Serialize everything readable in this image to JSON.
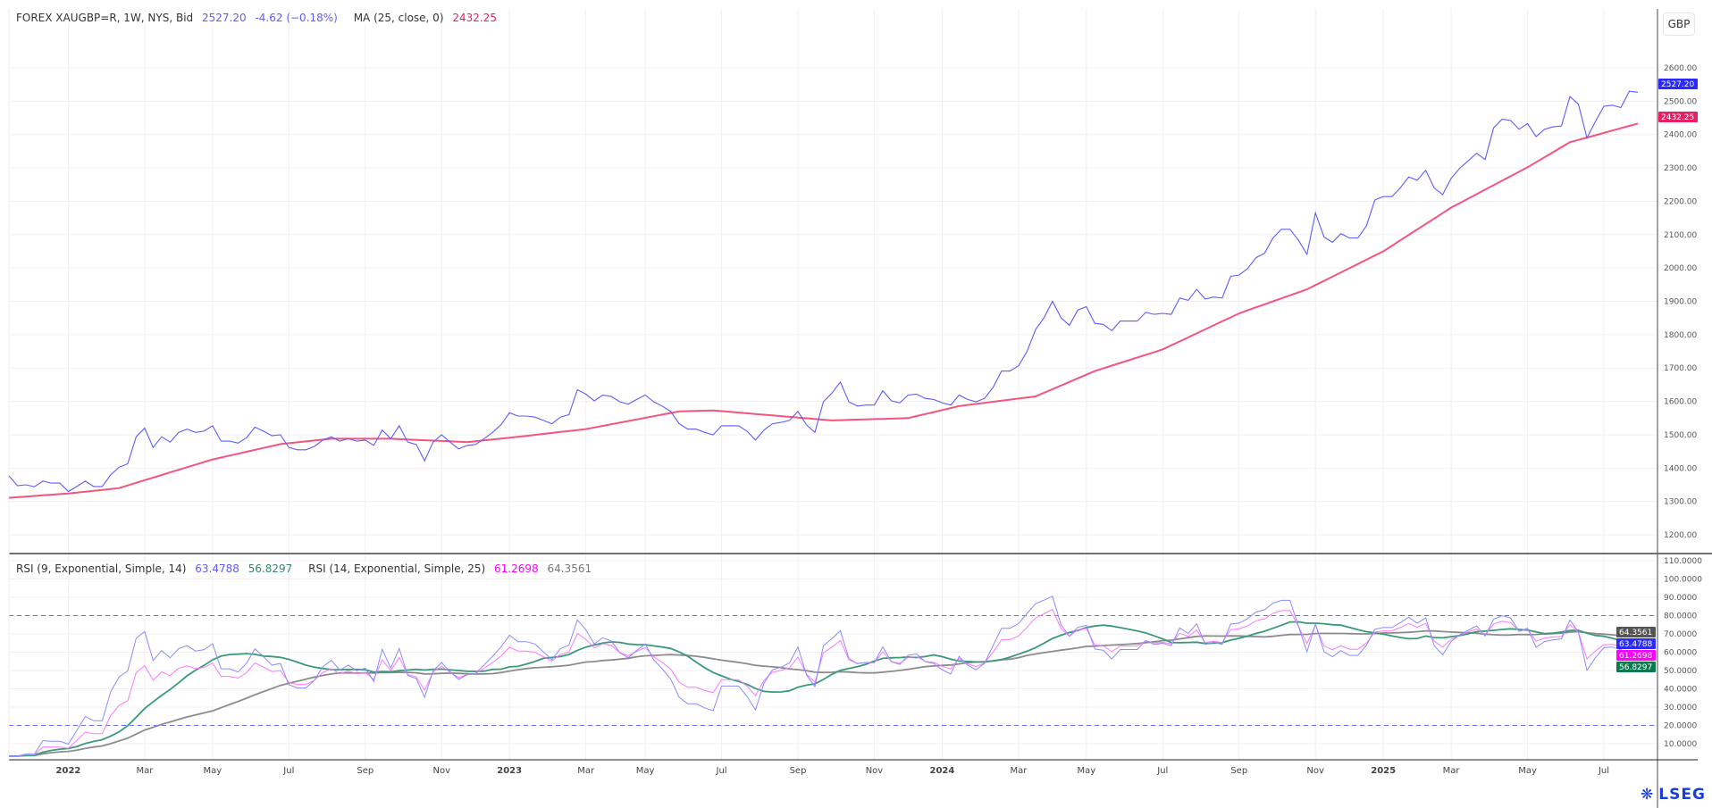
{
  "header": {
    "symbol": "FOREX XAUGBP=R, 1W, NYS, Bid",
    "last": "2527.20",
    "change": "-4.62 (−0.18%)",
    "ma_label": "MA (25, close, 0)",
    "ma_value": "2432.25"
  },
  "rsi_legend": {
    "rsi1_label": "RSI (9, Exponential, Simple, 14)",
    "rsi1_value": "63.4788",
    "rsi1_signal": "56.8297",
    "rsi2_label": "RSI (14, Exponential, Simple, 25)",
    "rsi2_value": "61.2698",
    "rsi2_signal": "64.3561"
  },
  "currency_button": "GBP",
  "logo": "LSEG",
  "colors": {
    "price": "#5c5cff",
    "ma": "#f2557e",
    "ma_tag": "#e91e63",
    "price_tag": "#2a2aff",
    "rsi1": "#8a8aff",
    "rsi1_signal": "#3a9a78",
    "rsi2": "#ff77ff",
    "rsi2_signal": "#8c8c8c",
    "rsi_tag_rsi2": "#ff00ff",
    "rsi_tag_signal1": "#0b7a4e",
    "rsi_tag_signal2": "#555555",
    "bands": "#6b6bff"
  },
  "chart_data": [
    {
      "type": "line",
      "title": "",
      "ylim": [
        1150,
        2650
      ],
      "yticks": [
        "1200.00",
        "1300.00",
        "1400.00",
        "1500.00",
        "1600.00",
        "1700.00",
        "1800.00",
        "1900.00",
        "2000.00",
        "2100.00",
        "2200.00",
        "2300.00",
        "2400.00",
        "2500.00",
        "2600.00"
      ],
      "x_labels": [
        {
          "text": "2022",
          "week": 7,
          "year": true
        },
        {
          "text": "Mar",
          "week": 16
        },
        {
          "text": "May",
          "week": 24
        },
        {
          "text": "Jul",
          "week": 33
        },
        {
          "text": "Sep",
          "week": 42
        },
        {
          "text": "Nov",
          "week": 51
        },
        {
          "text": "2023",
          "week": 59,
          "year": true
        },
        {
          "text": "Mar",
          "week": 68
        },
        {
          "text": "May",
          "week": 75
        },
        {
          "text": "Jul",
          "week": 84
        },
        {
          "text": "Sep",
          "week": 93
        },
        {
          "text": "Nov",
          "week": 102
        },
        {
          "text": "2024",
          "week": 110,
          "year": true
        },
        {
          "text": "Mar",
          "week": 119
        },
        {
          "text": "May",
          "week": 127
        },
        {
          "text": "Jul",
          "week": 136
        },
        {
          "text": "Sep",
          "week": 145
        },
        {
          "text": "Nov",
          "week": 154
        },
        {
          "text": "2025",
          "week": 162,
          "year": true
        },
        {
          "text": "Mar",
          "week": 170
        },
        {
          "text": "May",
          "week": 179
        },
        {
          "text": "Jul",
          "week": 188
        }
      ],
      "price_tag": "2527.20",
      "ma_tag": "2432.25",
      "series_close": [
        1377,
        1347,
        1350,
        1344,
        1361,
        1355,
        1355,
        1330,
        1345,
        1361,
        1345,
        1345,
        1380,
        1403,
        1413,
        1494,
        1520,
        1462,
        1494,
        1478,
        1507,
        1517,
        1507,
        1511,
        1527,
        1481,
        1481,
        1475,
        1491,
        1523,
        1511,
        1497,
        1500,
        1462,
        1455,
        1455,
        1465,
        1484,
        1494,
        1481,
        1488,
        1481,
        1484,
        1468,
        1514,
        1488,
        1527,
        1478,
        1471,
        1422,
        1478,
        1500,
        1478,
        1458,
        1468,
        1471,
        1488,
        1507,
        1530,
        1566,
        1556,
        1556,
        1553,
        1543,
        1533,
        1553,
        1560,
        1635,
        1622,
        1602,
        1619,
        1615,
        1599,
        1592,
        1606,
        1619,
        1599,
        1586,
        1570,
        1533,
        1517,
        1517,
        1507,
        1500,
        1527,
        1527,
        1527,
        1511,
        1484,
        1514,
        1533,
        1537,
        1543,
        1570,
        1530,
        1507,
        1599,
        1625,
        1658,
        1599,
        1586,
        1589,
        1589,
        1632,
        1602,
        1596,
        1619,
        1622,
        1609,
        1606,
        1596,
        1589,
        1619,
        1606,
        1599,
        1609,
        1642,
        1691,
        1691,
        1707,
        1750,
        1815,
        1851,
        1900,
        1851,
        1828,
        1874,
        1884,
        1834,
        1831,
        1812,
        1841,
        1841,
        1841,
        1867,
        1861,
        1864,
        1861,
        1910,
        1903,
        1936,
        1907,
        1913,
        1910,
        1975,
        1979,
        1998,
        2031,
        2044,
        2090,
        2116,
        2116,
        2083,
        2041,
        2165,
        2093,
        2077,
        2103,
        2090,
        2090,
        2126,
        2204,
        2214,
        2214,
        2240,
        2273,
        2263,
        2293,
        2240,
        2220,
        2269,
        2299,
        2321,
        2344,
        2325,
        2420,
        2446,
        2442,
        2416,
        2433,
        2394,
        2416,
        2423,
        2426,
        2514,
        2491,
        2390,
        2439,
        2485,
        2488,
        2481,
        2530,
        2527
      ],
      "series_ma_anchors": [
        [
          0,
          1311
        ],
        [
          7,
          1324
        ],
        [
          13,
          1340
        ],
        [
          16,
          1364
        ],
        [
          24,
          1426
        ],
        [
          32,
          1472
        ],
        [
          38,
          1488
        ],
        [
          45,
          1488
        ],
        [
          54,
          1478
        ],
        [
          59,
          1491
        ],
        [
          68,
          1517
        ],
        [
          79,
          1570
        ],
        [
          83,
          1573
        ],
        [
          89,
          1560
        ],
        [
          97,
          1543
        ],
        [
          106,
          1550
        ],
        [
          112,
          1586
        ],
        [
          121,
          1615
        ],
        [
          128,
          1691
        ],
        [
          136,
          1756
        ],
        [
          145,
          1864
        ],
        [
          153,
          1936
        ],
        [
          162,
          2050
        ],
        [
          170,
          2181
        ],
        [
          179,
          2302
        ],
        [
          184,
          2377
        ],
        [
          192,
          2433
        ]
      ]
    },
    {
      "type": "line",
      "title": "",
      "ylim": [
        0,
        115
      ],
      "yticks": [
        "10.0000",
        "20.0000",
        "30.0000",
        "40.0000",
        "50.0000",
        "60.0000",
        "70.0000",
        "80.0000",
        "90.0000",
        "100.0000",
        "110.0000"
      ],
      "bands": [
        20,
        80
      ],
      "tags": [
        "64.3561",
        "63.4788",
        "61.2698",
        "56.8297"
      ]
    }
  ]
}
